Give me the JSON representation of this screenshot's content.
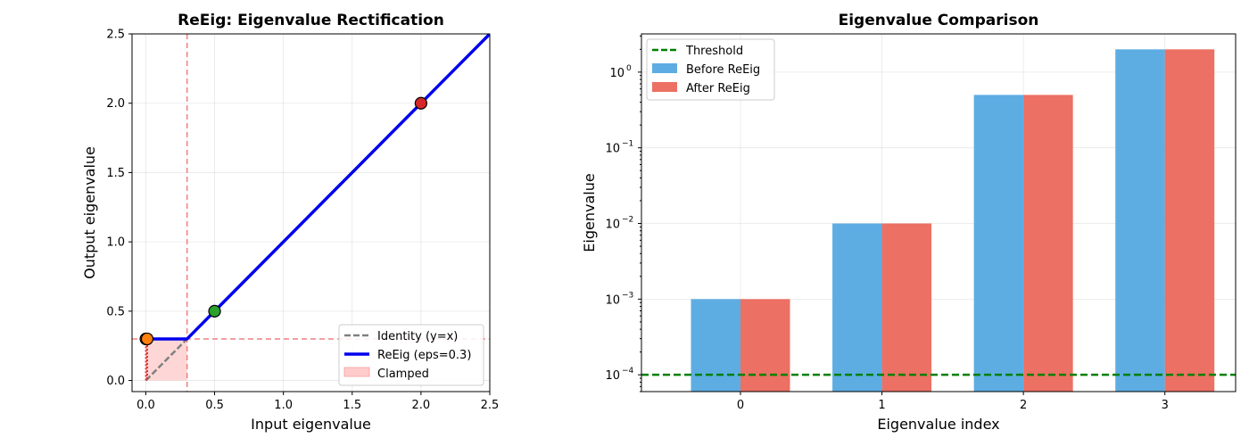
{
  "chart_data": [
    {
      "type": "line",
      "title": "ReEig: Eigenvalue Rectification",
      "xlabel": "Input eigenvalue",
      "ylabel": "Output eigenvalue",
      "xlim": [
        -0.1,
        2.5
      ],
      "ylim": [
        -0.08,
        2.5
      ],
      "xticks": [
        0.0,
        0.5,
        1.0,
        1.5,
        2.0,
        2.5
      ],
      "xtick_labels": [
        "0.0",
        "0.5",
        "1.0",
        "1.5",
        "2.0",
        "2.5"
      ],
      "yticks": [
        0.0,
        0.5,
        1.0,
        1.5,
        2.0,
        2.5
      ],
      "ytick_labels": [
        "0.0",
        "0.5",
        "1.0",
        "1.5",
        "2.0",
        "2.5"
      ],
      "grid": true,
      "eps": 0.3,
      "series": [
        {
          "name": "Identity (y=x)",
          "style": "dashed",
          "color": "#808080",
          "x": [
            0.0,
            0.3
          ],
          "y": [
            0.0,
            0.3
          ]
        },
        {
          "name": "ReEig (eps=0.3)",
          "style": "solid",
          "color": "#0000ee",
          "x": [
            0.0,
            0.3,
            2.5
          ],
          "y": [
            0.3,
            0.3,
            2.5
          ]
        },
        {
          "name": "Clamped",
          "style": "fill",
          "color": "#ffcccc",
          "x": [
            0.0,
            0.3
          ],
          "y_bottom": [
            0.0,
            0.0
          ],
          "y_top": [
            0.3,
            0.3
          ]
        }
      ],
      "reference_lines": [
        {
          "orientation": "vertical",
          "value": 0.3,
          "color": "#f08080",
          "style": "dashed"
        },
        {
          "orientation": "horizontal",
          "value": 0.3,
          "color": "#f08080",
          "style": "dashed"
        }
      ],
      "clamp_arrows": [
        {
          "x": 0.001,
          "y_from": 0.001,
          "y_to": 0.3
        },
        {
          "x": 0.01,
          "y_from": 0.01,
          "y_to": 0.3
        }
      ],
      "points": [
        {
          "x": 0.001,
          "y": 0.3,
          "color": "#ff7f0e"
        },
        {
          "x": 0.01,
          "y": 0.3,
          "color": "#ff7f0e"
        },
        {
          "x": 0.5,
          "y": 0.5,
          "color": "#2ca02c"
        },
        {
          "x": 2.0,
          "y": 2.0,
          "color": "#d62728"
        }
      ],
      "legend_position": "lower-right"
    },
    {
      "type": "bar",
      "title": "Eigenvalue Comparison",
      "xlabel": "Eigenvalue index",
      "ylabel": "Eigenvalue",
      "yscale": "log",
      "ylim": [
        6e-05,
        3.2
      ],
      "categories": [
        "0",
        "1",
        "2",
        "3"
      ],
      "yticks": [
        0.0001,
        0.001,
        0.01,
        0.1,
        1
      ],
      "ytick_labels": [
        {
          "base": "10",
          "exp": "−4"
        },
        {
          "base": "10",
          "exp": "−3"
        },
        {
          "base": "10",
          "exp": "−2"
        },
        {
          "base": "10",
          "exp": "−1"
        },
        {
          "base": "10",
          "exp": "0"
        }
      ],
      "grid": true,
      "series": [
        {
          "name": "Before ReEig",
          "color": "#5dade2",
          "values": [
            0.001,
            0.01,
            0.5,
            2.0
          ]
        },
        {
          "name": "After ReEig",
          "color": "#ec7063",
          "values": [
            0.001,
            0.01,
            0.5,
            2.0
          ]
        }
      ],
      "threshold": {
        "name": "Threshold",
        "value": 0.0001,
        "color": "#008000",
        "style": "dashed"
      },
      "legend_position": "upper-left"
    }
  ]
}
